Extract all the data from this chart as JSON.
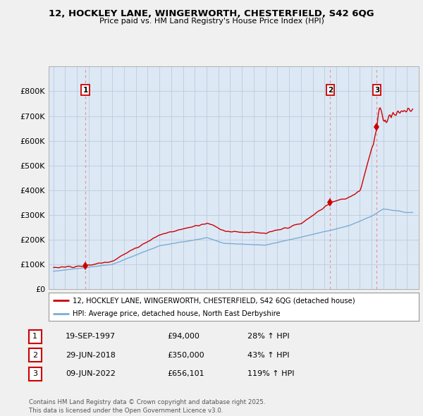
{
  "title_line1": "12, HOCKLEY LANE, WINGERWORTH, CHESTERFIELD, S42 6QG",
  "title_line2": "Price paid vs. HM Land Registry's House Price Index (HPI)",
  "price_paid_color": "#cc0000",
  "hpi_color": "#7aadd4",
  "background_color": "#f0f0f0",
  "plot_bg_color": "#dde8f5",
  "grid_color": "#c0cfe0",
  "sales": [
    {
      "date": 1997.72,
      "price": 94000,
      "label": "1"
    },
    {
      "date": 2018.49,
      "price": 350000,
      "label": "2"
    },
    {
      "date": 2022.44,
      "price": 656101,
      "label": "3"
    }
  ],
  "legend_line1": "12, HOCKLEY LANE, WINGERWORTH, CHESTERFIELD, S42 6QG (detached house)",
  "legend_line2": "HPI: Average price, detached house, North East Derbyshire",
  "table_entries": [
    {
      "num": "1",
      "date": "19-SEP-1997",
      "price": "£94,000",
      "change": "28% ↑ HPI"
    },
    {
      "num": "2",
      "date": "29-JUN-2018",
      "price": "£350,000",
      "change": "43% ↑ HPI"
    },
    {
      "num": "3",
      "date": "09-JUN-2022",
      "price": "£656,101",
      "change": "119% ↑ HPI"
    }
  ],
  "footnote": "Contains HM Land Registry data © Crown copyright and database right 2025.\nThis data is licensed under the Open Government Licence v3.0.",
  "ylim": [
    0,
    900000
  ],
  "yticks": [
    0,
    100000,
    200000,
    300000,
    400000,
    500000,
    600000,
    700000,
    800000
  ],
  "ytick_labels": [
    "£0",
    "£100K",
    "£200K",
    "£300K",
    "£400K",
    "£500K",
    "£600K",
    "£700K",
    "£800K"
  ],
  "xlim_start": 1994.6,
  "xlim_end": 2026.0
}
